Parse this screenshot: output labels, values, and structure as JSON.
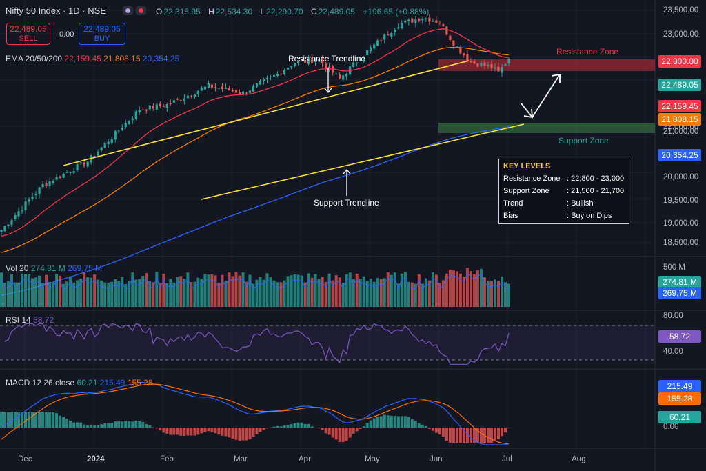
{
  "header": {
    "symbol_title": "Nifty 50 Index · 1D · NSE",
    "ohlc": [
      {
        "k": "O",
        "v": "22,315.95"
      },
      {
        "k": "H",
        "v": "22,534.30"
      },
      {
        "k": "L",
        "v": "22,290.70"
      },
      {
        "k": "C",
        "v": "22,489.05"
      }
    ],
    "change": "+196.65 (+0.88%)",
    "sell_price": "22,489.05",
    "sell_label": "SELL",
    "spread": "0.00",
    "buy_price": "22,489.05",
    "buy_label": "BUY"
  },
  "legend": {
    "ema_label": "EMA 20/50/200",
    "ema20": "22,159.45",
    "ema50": "21,808.15",
    "ema200": "20,354.25",
    "vol_label": "Vol 20",
    "vol_value": "274.81 M",
    "vol_ma": "269.75 M",
    "rsi_label": "RSI 14",
    "rsi_value": "58.72",
    "macd_label": "MACD 12 26 close",
    "macd_hist": "60.21",
    "macd_line": "215.49",
    "macd_signal": "155.28"
  },
  "annotations": {
    "resistance_trendline": "Resistance Trendline",
    "support_trendline": "Support Trendline",
    "resistance_zone": "Resistance Zone",
    "support_zone": "Support Zone"
  },
  "key_levels": {
    "heading": "KEY LEVELS",
    "rows": [
      {
        "label": "Resistance Zone",
        "value": ": 22,800 - 23,000"
      },
      {
        "label": "Support Zone",
        "value": ": 21,500 - 21,700"
      },
      {
        "label": "Trend",
        "value": ": Bullish"
      },
      {
        "label": "Bias",
        "value": ": Buy on Dips"
      }
    ]
  },
  "price_axis": [
    "23,500.00",
    "23,000.00",
    "22,000.00",
    "21,000.00",
    "20,000.00",
    "19,500.00",
    "19,000.00",
    "18,500.00"
  ],
  "price_tags": {
    "resistance": "22,800.00",
    "last": "22,489.05",
    "ema20": "22,159.45",
    "ema50": "21,808.15",
    "ema200": "20,354.25"
  },
  "volume_axis": {
    "max": "500 M",
    "vol": "274.81 M",
    "ma": "269.75 M"
  },
  "rsi_axis": {
    "upper": "80.00",
    "lower": "40.00",
    "value": "58.72"
  },
  "macd_axis": {
    "macd": "215.49",
    "signal": "155.28",
    "hist": "60.21",
    "zero": "0.00"
  },
  "time_axis": [
    "Dec",
    "2024",
    "Feb",
    "Mar",
    "Apr",
    "May",
    "Jun",
    "Jul",
    "Aug"
  ],
  "colors": {
    "bg": "#131722",
    "up": "#26a69a",
    "down": "#ef5350",
    "ema20": "#f23645",
    "ema50": "#f57c00",
    "ema200": "#2962ff",
    "trendline": "#f7e03a",
    "rsi": "#7e57c2",
    "macd": "#2962ff",
    "signal": "#ff6d00"
  },
  "chart_data": {
    "type": "line",
    "title": "Nifty 50 Index · 1D · NSE",
    "x": [
      "Dec",
      "2024",
      "Feb",
      "Mar",
      "Apr",
      "May",
      "Jun",
      "Jul"
    ],
    "series": [
      {
        "name": "EMA 20",
        "values": [
          20100,
          21350,
          21450,
          21900,
          22250,
          22200,
          22900,
          22159.45
        ]
      },
      {
        "name": "EMA 50",
        "values": [
          19700,
          20700,
          21150,
          21600,
          21950,
          22050,
          22450,
          21808.15
        ]
      },
      {
        "name": "EMA 200",
        "values": [
          19050,
          19350,
          19600,
          19850,
          20050,
          20150,
          20250,
          20354.25
        ]
      }
    ],
    "ylim": [
      18300,
      23600
    ]
  }
}
